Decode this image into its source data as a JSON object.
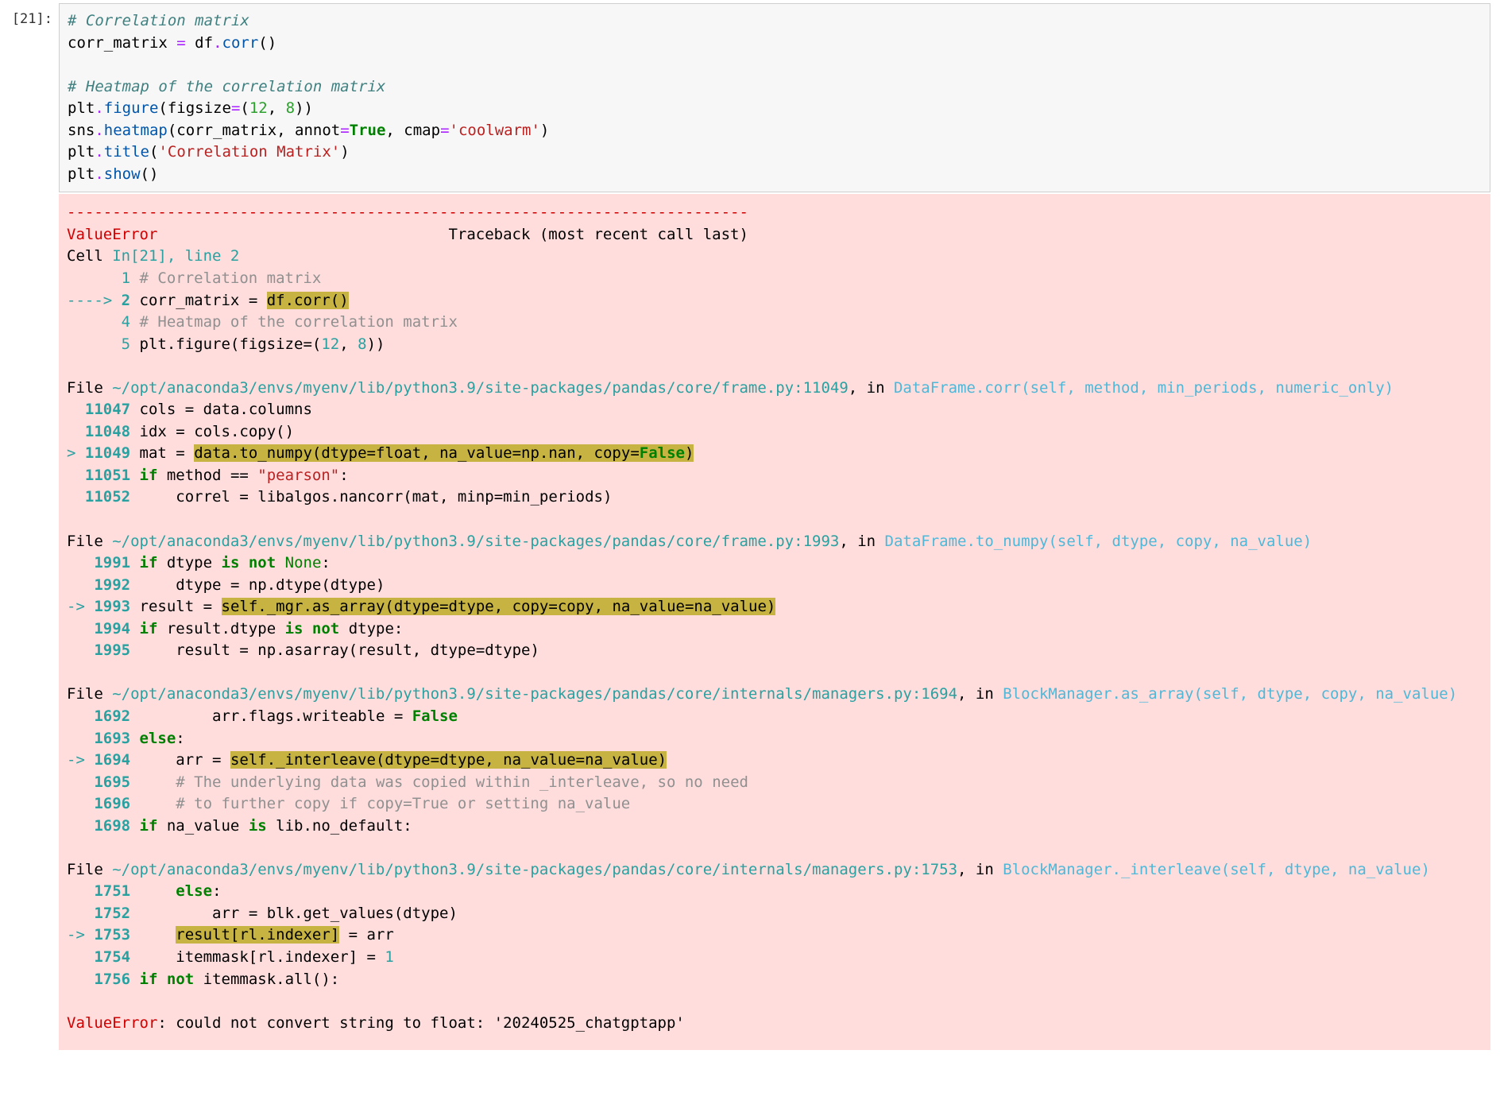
{
  "colors": {
    "code_bg": "#f7f7f7",
    "code_border": "#cfcfcf",
    "error_bg": "#fdd",
    "highlight_bg": "#c6b342",
    "text": "#000000",
    "comment": "#408080",
    "operator": "#aa22ff",
    "builtin": "#2ca02c",
    "call": "#0055aa",
    "keyword": "#008000",
    "string": "#ba2121",
    "error_red": "#d00000",
    "cyan": "#2aa1a1",
    "func_link": "#4fb8d8",
    "dim": "#909090"
  },
  "typography": {
    "font_family": "monospace",
    "font_size_pt": 14
  },
  "prompt": {
    "label": "[21]:"
  },
  "code_input": {
    "c1": "# Correlation matrix",
    "l2_a": "corr_matrix ",
    "l2_op": "=",
    "l2_b": " df",
    "l2_dot": ".",
    "l2_call": "corr",
    "l2_c": "()",
    "blank": "",
    "c2": "# Heatmap of the correlation matrix",
    "l4_a": "plt",
    "l4_dot": ".",
    "l4_call": "figure",
    "l4_b": "(figsize",
    "l4_op": "=",
    "l4_c": "(",
    "l4_n1": "12",
    "l4_d": ", ",
    "l4_n2": "8",
    "l4_e": "))",
    "l5_a": "sns",
    "l5_dot": ".",
    "l5_call": "heatmap",
    "l5_b": "(corr_matrix, annot",
    "l5_op": "=",
    "l5_kw": "True",
    "l5_c": ", cmap",
    "l5_op2": "=",
    "l5_str": "'coolwarm'",
    "l5_d": ")",
    "l6_a": "plt",
    "l6_dot": ".",
    "l6_call": "title",
    "l6_b": "(",
    "l6_str": "'Correlation Matrix'",
    "l6_c": ")",
    "l7_a": "plt",
    "l7_dot": ".",
    "l7_call": "show",
    "l7_b": "()"
  },
  "traceback": {
    "sep": "---------------------------------------------------------------------------",
    "err_name": "ValueError",
    "err_tail": "                                Traceback (most recent call last)",
    "cell_loc_a": "Cell ",
    "cell_loc_b": "In[21], line 2",
    "l1_n": "      1",
    "l1_t": " # Correlation matrix",
    "l2_arrow": "----> ",
    "l2_n": "2",
    "l2_t1": " corr_matrix ",
    "l2_op": "=",
    "l2_t2": " ",
    "l2_hl": "df.corr()",
    "l4_n": "      4",
    "l4_t": " # Heatmap of the correlation matrix",
    "l5_n": "      5",
    "l5_t1": " plt.figure(figsize",
    "l5_op": "=",
    "l5_t2": "(",
    "l5_n1": "12",
    "l5_t3": ", ",
    "l5_n2": "8",
    "l5_t4": "))",
    "f1_pre": "File ",
    "f1_path": "~/opt/anaconda3/envs/myenv/lib/python3.9/site-packages/pandas/core/frame.py:11049",
    "f1_in": ", in ",
    "f1_func": "DataFrame.corr",
    "f1_sig": "(self, method, min_periods, numeric_only)",
    "f1_l1_n": "  11047",
    "f1_l1_t": " cols ",
    "f1_l1_op": "=",
    "f1_l1_t2": " data.columns",
    "f1_l2_n": "  11048",
    "f1_l2_t": " idx ",
    "f1_l2_op": "=",
    "f1_l2_t2": " cols.copy()",
    "f1_l3_arrow": "> ",
    "f1_l3_n": "11049",
    "f1_l3_t": " mat ",
    "f1_l3_op": "=",
    "f1_l3_sp": " ",
    "f1_l3_hl_a": "data.to_numpy(dtype",
    "f1_l3_hl_op1": "=",
    "f1_l3_hl_b": "float",
    "f1_l3_hl_c": ", na_value",
    "f1_l3_hl_op2": "=",
    "f1_l3_hl_d": "np.nan, copy",
    "f1_l3_hl_op3": "=",
    "f1_l3_hl_kw": "False",
    "f1_l3_hl_e": ")",
    "f1_l4_n": "  11051",
    "f1_l4_kw": " if",
    "f1_l4_t": " method ",
    "f1_l4_op": "==",
    "f1_l4_sp": " ",
    "f1_l4_str": "\"pearson\"",
    "f1_l4_t2": ":",
    "f1_l5_n": "  11052",
    "f1_l5_t": "     correl ",
    "f1_l5_op": "=",
    "f1_l5_t2": " libalgos.nancorr(mat, minp",
    "f1_l5_op2": "=",
    "f1_l5_t3": "min_periods)",
    "f2_path": "~/opt/anaconda3/envs/myenv/lib/python3.9/site-packages/pandas/core/frame.py:1993",
    "f2_func": "DataFrame.to_numpy",
    "f2_sig": "(self, dtype, copy, na_value)",
    "f2_l1_n": "   1991",
    "f2_l1_kw": " if",
    "f2_l1_t": " dtype ",
    "f2_l1_kw2": "is",
    "f2_l1_sp": " ",
    "f2_l1_kw3": "not",
    "f2_l1_sp2": " ",
    "f2_l1_kw4": "None",
    "f2_l1_t2": ":",
    "f2_l2_n": "   1992",
    "f2_l2_t": "     dtype ",
    "f2_l2_op": "=",
    "f2_l2_t2": " np.dtype(dtype)",
    "f2_l3_arrow": "-> ",
    "f2_l3_n": "1993",
    "f2_l3_t": " result ",
    "f2_l3_op": "=",
    "f2_l3_sp": " ",
    "f2_l3_hl_a": "self",
    "f2_l3_hl_b": "._mgr.as_array(dtype",
    "f2_l3_hl_op1": "=",
    "f2_l3_hl_c": "dtype, copy",
    "f2_l3_hl_op2": "=",
    "f2_l3_hl_d": "copy, na_value",
    "f2_l3_hl_op3": "=",
    "f2_l3_hl_e": "na_value)",
    "f2_l4_n": "   1994",
    "f2_l4_kw": " if",
    "f2_l4_t": " result.dtype ",
    "f2_l4_kw2": "is",
    "f2_l4_sp": " ",
    "f2_l4_kw3": "not",
    "f2_l4_t2": " dtype:",
    "f2_l5_n": "   1995",
    "f2_l5_t": "     result ",
    "f2_l5_op": "=",
    "f2_l5_t2": " np.asarray(result, dtype",
    "f2_l5_op2": "=",
    "f2_l5_t3": "dtype)",
    "f3_path": "~/opt/anaconda3/envs/myenv/lib/python3.9/site-packages/pandas/core/internals/managers.py:1694",
    "f3_func": "BlockManager.as_array",
    "f3_sig": "(self, dtype, copy, na_value)",
    "f3_l1_n": "   1692",
    "f3_l1_t": "         arr.flags.writeable ",
    "f3_l1_op": "=",
    "f3_l1_sp": " ",
    "f3_l1_kw": "False",
    "f3_l2_n": "   1693",
    "f3_l2_kw": " else",
    "f3_l2_t": ":",
    "f3_l3_arrow": "-> ",
    "f3_l3_n": "1694",
    "f3_l3_t": "     arr ",
    "f3_l3_op": "=",
    "f3_l3_sp": " ",
    "f3_l3_hl_a": "self",
    "f3_l3_hl_b": "._interleave(dtype",
    "f3_l3_hl_op1": "=",
    "f3_l3_hl_c": "dtype, na_value",
    "f3_l3_hl_op2": "=",
    "f3_l3_hl_d": "na_value)",
    "f3_l4_n": "   1695",
    "f3_l4_t": "     # The underlying data was copied within _interleave, so no need",
    "f3_l5_n": "   1696",
    "f3_l5_t": "     # to further copy if copy=True or setting na_value",
    "f3_l6_n": "   1698",
    "f3_l6_kw": " if",
    "f3_l6_t": " na_value ",
    "f3_l6_kw2": "is",
    "f3_l6_t2": " lib.no_default:",
    "f4_path": "~/opt/anaconda3/envs/myenv/lib/python3.9/site-packages/pandas/core/internals/managers.py:1753",
    "f4_func": "BlockManager._interleave",
    "f4_sig": "(self, dtype, na_value)",
    "f4_l1_n": "   1751",
    "f4_l1_t": "     ",
    "f4_l1_kw": "else",
    "f4_l1_t2": ":",
    "f4_l2_n": "   1752",
    "f4_l2_t": "         arr ",
    "f4_l2_op": "=",
    "f4_l2_t2": " blk.get_values(dtype)",
    "f4_l3_arrow": "-> ",
    "f4_l3_n": "1753",
    "f4_l3_t": "     ",
    "f4_l3_hl": "result[rl.indexer]",
    "f4_l3_sp": " ",
    "f4_l3_op": "=",
    "f4_l3_t2": " arr",
    "f4_l4_n": "   1754",
    "f4_l4_t": "     itemmask[rl.indexer] ",
    "f4_l4_op": "=",
    "f4_l4_sp": " ",
    "f4_l4_n2": "1",
    "f4_l5_n": "   1756",
    "f4_l5_kw": " if",
    "f4_l5_sp": " ",
    "f4_l5_kw2": "not",
    "f4_l5_t": " itemmask.all():",
    "final_err": "ValueError",
    "final_msg": ": could not convert string to float: '20240525_chatgptapp'"
  }
}
